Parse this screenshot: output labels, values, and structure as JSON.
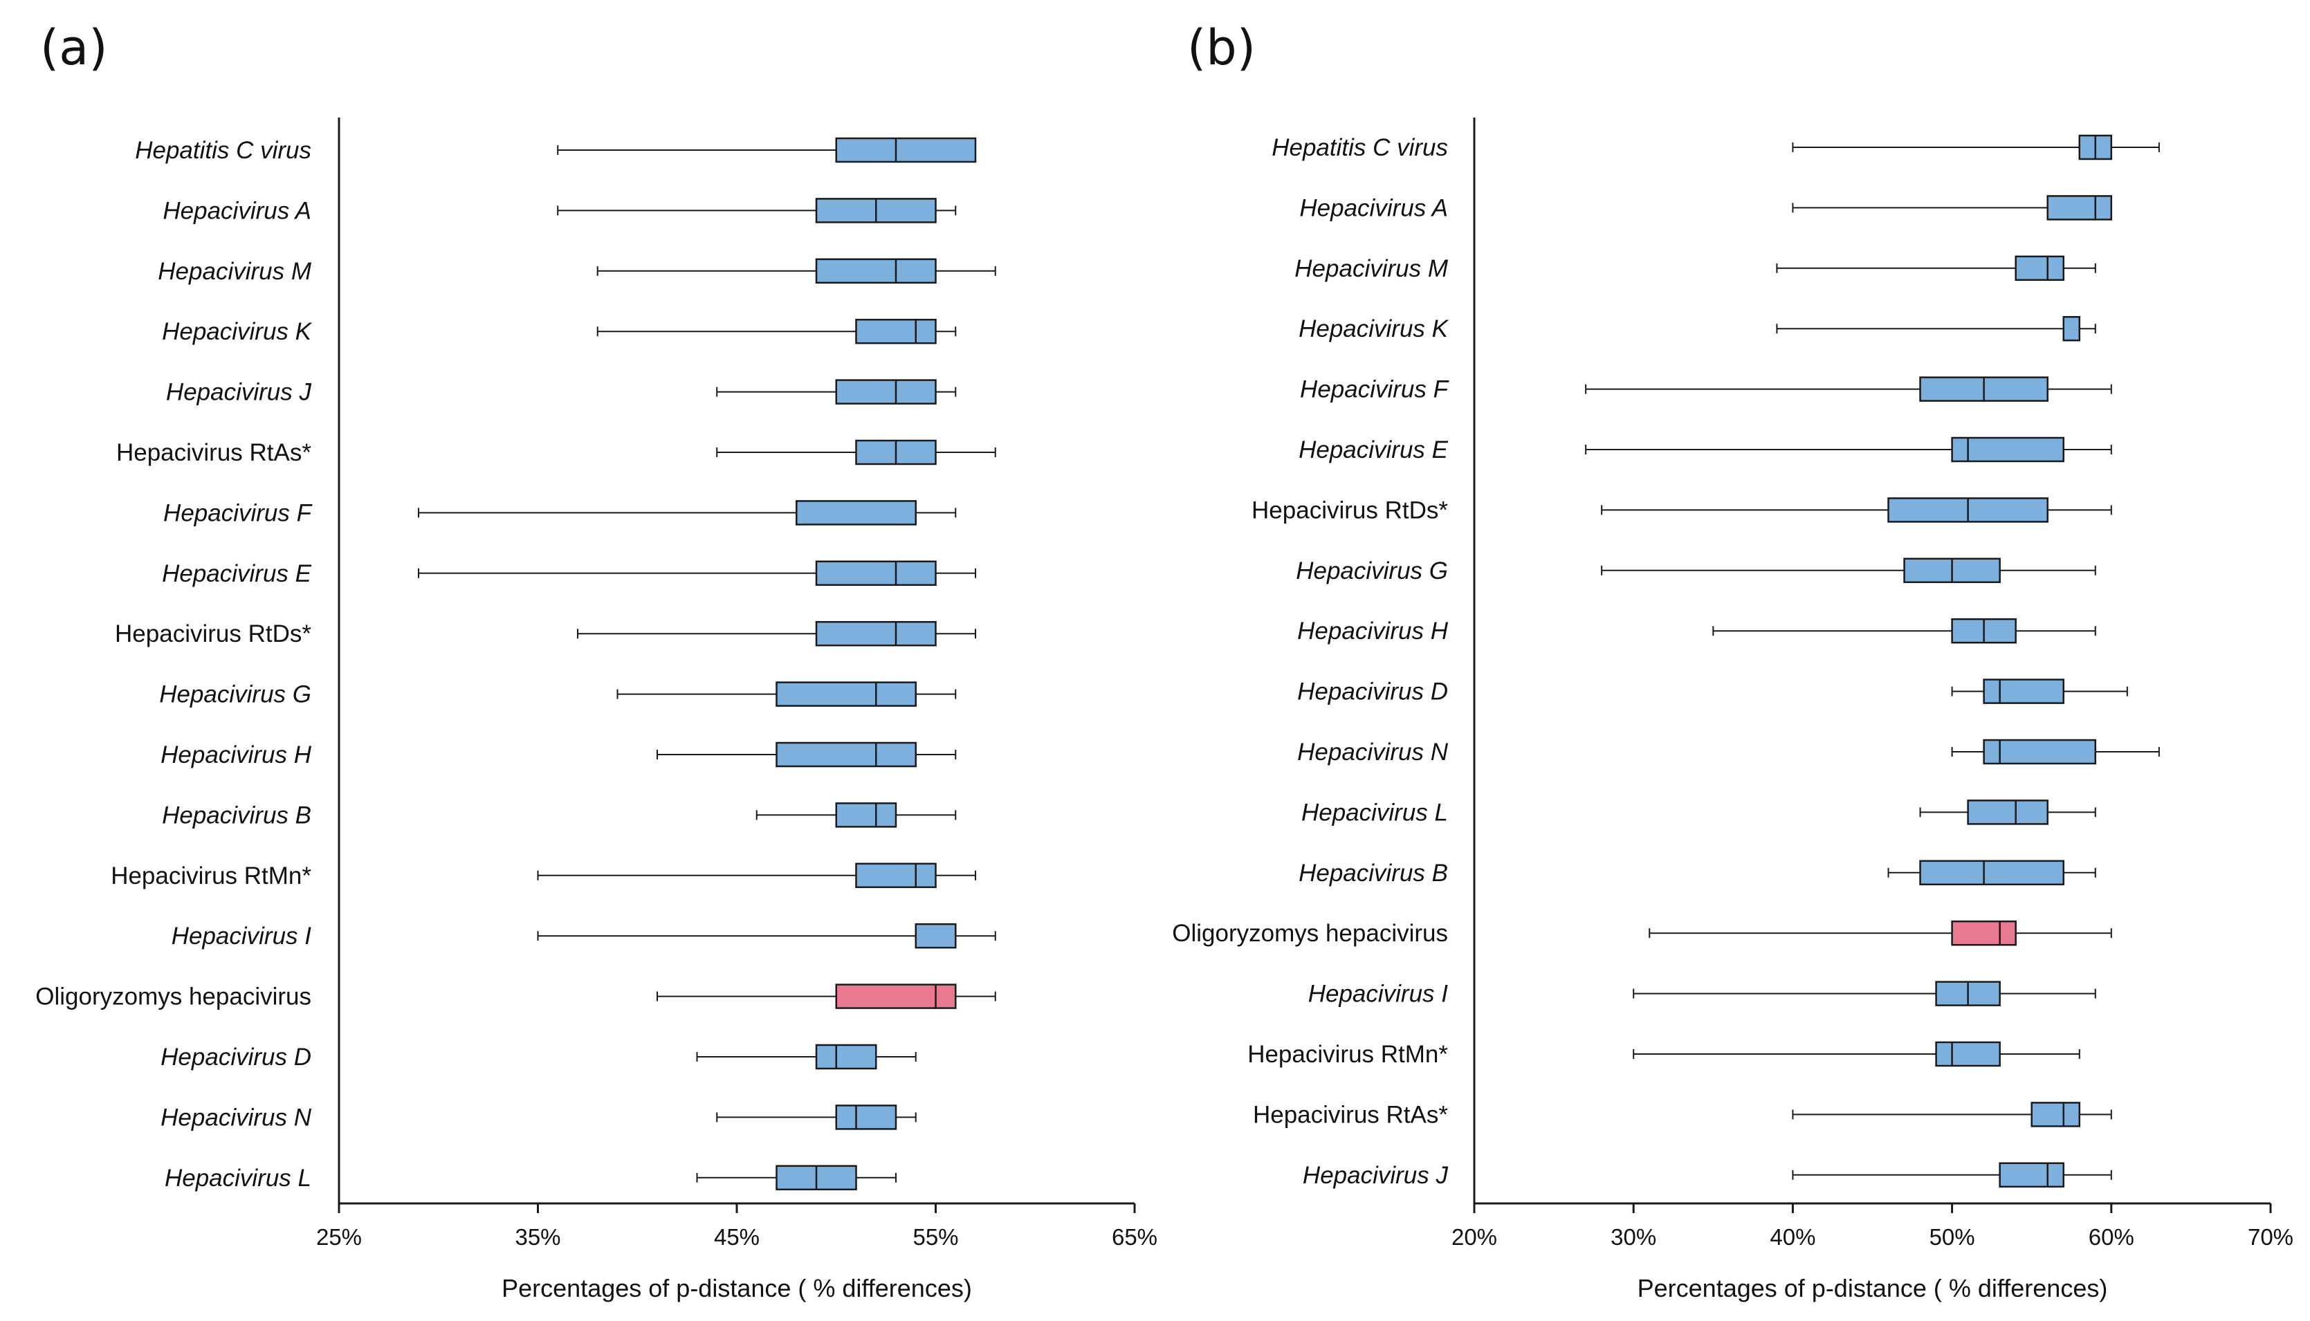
{
  "colors": {
    "box": "#7eb0de",
    "highlight": "#e8798f",
    "stroke": "#1a1a1a",
    "highlight_text": "#e8202a",
    "text": "#111111"
  },
  "chart_data": [
    {
      "type": "boxplot",
      "panel_label": "(a)",
      "xlabel": "Percentages of p-distance ( % differences)",
      "xlim": [
        25,
        65
      ],
      "xticks": [
        25,
        35,
        45,
        55,
        65
      ],
      "xtick_labels": [
        "25%",
        "35%",
        "45%",
        "55%",
        "65%"
      ],
      "series": [
        {
          "name": "Hepatitis C virus",
          "italic": true,
          "highlight": false,
          "min": 36,
          "q1": 50,
          "median": 53,
          "q3": 57,
          "max": 57
        },
        {
          "name": "Hepacivirus A",
          "italic": true,
          "highlight": false,
          "min": 36,
          "q1": 49,
          "median": 52,
          "q3": 55,
          "max": 56
        },
        {
          "name": "Hepacivirus M",
          "italic": true,
          "highlight": false,
          "min": 38,
          "q1": 49,
          "median": 53,
          "q3": 55,
          "max": 58
        },
        {
          "name": "Hepacivirus K",
          "italic": true,
          "highlight": false,
          "min": 38,
          "q1": 51,
          "median": 54,
          "q3": 55,
          "max": 56
        },
        {
          "name": "Hepacivirus J",
          "italic": true,
          "highlight": false,
          "min": 44,
          "q1": 50,
          "median": 53,
          "q3": 55,
          "max": 56
        },
        {
          "name": "Hepacivirus RtAs*",
          "italic": false,
          "highlight": false,
          "min": 44,
          "q1": 51,
          "median": 53,
          "q3": 55,
          "max": 58
        },
        {
          "name": "Hepacivirus F",
          "italic": true,
          "highlight": false,
          "min": 29,
          "q1": 48,
          "median": 54,
          "q3": 54,
          "max": 56
        },
        {
          "name": "Hepacivirus E",
          "italic": true,
          "highlight": false,
          "min": 29,
          "q1": 49,
          "median": 53,
          "q3": 55,
          "max": 57
        },
        {
          "name": "Hepacivirus RtDs*",
          "italic": false,
          "highlight": false,
          "min": 37,
          "q1": 49,
          "median": 53,
          "q3": 55,
          "max": 57
        },
        {
          "name": "Hepacivirus G",
          "italic": true,
          "highlight": false,
          "min": 39,
          "q1": 47,
          "median": 52,
          "q3": 54,
          "max": 56
        },
        {
          "name": "Hepacivirus H",
          "italic": true,
          "highlight": false,
          "min": 41,
          "q1": 47,
          "median": 52,
          "q3": 54,
          "max": 56
        },
        {
          "name": "Hepacivirus B",
          "italic": true,
          "highlight": false,
          "min": 46,
          "q1": 50,
          "median": 52,
          "q3": 53,
          "max": 56
        },
        {
          "name": "Hepacivirus RtMn*",
          "italic": false,
          "highlight": false,
          "min": 35,
          "q1": 51,
          "median": 54,
          "q3": 55,
          "max": 57
        },
        {
          "name": "Hepacivirus I",
          "italic": true,
          "highlight": false,
          "min": 35,
          "q1": 54,
          "median": 54,
          "q3": 56,
          "max": 58
        },
        {
          "name": "Oligoryzomys hepacivirus",
          "italic": false,
          "highlight": true,
          "min": 41,
          "q1": 50,
          "median": 55,
          "q3": 56,
          "max": 58
        },
        {
          "name": "Hepacivirus D",
          "italic": true,
          "highlight": false,
          "min": 43,
          "q1": 49,
          "median": 50,
          "q3": 52,
          "max": 54
        },
        {
          "name": "Hepacivirus N",
          "italic": true,
          "highlight": false,
          "min": 44,
          "q1": 50,
          "median": 51,
          "q3": 53,
          "max": 54
        },
        {
          "name": "Hepacivirus L",
          "italic": true,
          "highlight": false,
          "min": 43,
          "q1": 47,
          "median": 49,
          "q3": 51,
          "max": 53
        }
      ]
    },
    {
      "type": "boxplot",
      "panel_label": "(b)",
      "xlabel": "Percentages of p-distance ( % differences)",
      "xlim": [
        20,
        70
      ],
      "xticks": [
        20,
        30,
        40,
        50,
        60,
        70
      ],
      "xtick_labels": [
        "20%",
        "30%",
        "40%",
        "50%",
        "60%",
        "70%"
      ],
      "series": [
        {
          "name": "Hepatitis C virus",
          "italic": true,
          "highlight": false,
          "min": 40,
          "q1": 58,
          "median": 59,
          "q3": 60,
          "max": 63
        },
        {
          "name": "Hepacivirus A",
          "italic": true,
          "highlight": false,
          "min": 40,
          "q1": 56,
          "median": 59,
          "q3": 60,
          "max": 60
        },
        {
          "name": "Hepacivirus M",
          "italic": true,
          "highlight": false,
          "min": 39,
          "q1": 54,
          "median": 56,
          "q3": 57,
          "max": 59
        },
        {
          "name": "Hepacivirus K",
          "italic": true,
          "highlight": false,
          "min": 39,
          "q1": 57,
          "median": 57,
          "q3": 58,
          "max": 59
        },
        {
          "name": "Hepacivirus F",
          "italic": true,
          "highlight": false,
          "min": 27,
          "q1": 48,
          "median": 52,
          "q3": 56,
          "max": 60
        },
        {
          "name": "Hepacivirus E",
          "italic": true,
          "highlight": false,
          "min": 27,
          "q1": 50,
          "median": 51,
          "q3": 57,
          "max": 60
        },
        {
          "name": "Hepacivirus RtDs*",
          "italic": false,
          "highlight": false,
          "min": 28,
          "q1": 46,
          "median": 51,
          "q3": 56,
          "max": 60
        },
        {
          "name": "Hepacivirus G",
          "italic": true,
          "highlight": false,
          "min": 28,
          "q1": 47,
          "median": 50,
          "q3": 53,
          "max": 59
        },
        {
          "name": "Hepacivirus H",
          "italic": true,
          "highlight": false,
          "min": 35,
          "q1": 50,
          "median": 52,
          "q3": 54,
          "max": 59
        },
        {
          "name": "Hepacivirus D",
          "italic": true,
          "highlight": false,
          "min": 50,
          "q1": 52,
          "median": 53,
          "q3": 57,
          "max": 61
        },
        {
          "name": "Hepacivirus N",
          "italic": true,
          "highlight": false,
          "min": 50,
          "q1": 52,
          "median": 53,
          "q3": 59,
          "max": 63
        },
        {
          "name": "Hepacivirus L",
          "italic": true,
          "highlight": false,
          "min": 48,
          "q1": 51,
          "median": 54,
          "q3": 56,
          "max": 59
        },
        {
          "name": "Hepacivirus B",
          "italic": true,
          "highlight": false,
          "min": 46,
          "q1": 48,
          "median": 52,
          "q3": 57,
          "max": 59
        },
        {
          "name": "Oligoryzomys hepacivirus",
          "italic": false,
          "highlight": true,
          "min": 31,
          "q1": 50,
          "median": 53,
          "q3": 54,
          "max": 60
        },
        {
          "name": "Hepacivirus I",
          "italic": true,
          "highlight": false,
          "min": 30,
          "q1": 49,
          "median": 51,
          "q3": 53,
          "max": 59
        },
        {
          "name": "Hepacivirus RtMn*",
          "italic": false,
          "highlight": false,
          "min": 30,
          "q1": 49,
          "median": 50,
          "q3": 53,
          "max": 58
        },
        {
          "name": "Hepacivirus RtAs*",
          "italic": false,
          "highlight": false,
          "min": 40,
          "q1": 55,
          "median": 57,
          "q3": 58,
          "max": 60
        },
        {
          "name": "Hepacivirus J",
          "italic": true,
          "highlight": false,
          "min": 40,
          "q1": 53,
          "median": 56,
          "q3": 57,
          "max": 60
        }
      ]
    }
  ]
}
